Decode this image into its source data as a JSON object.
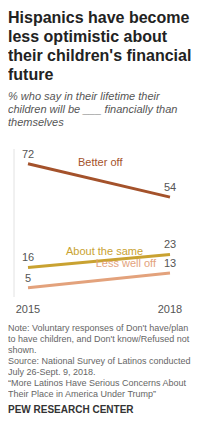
{
  "chart_data": {
    "type": "line",
    "title": "Hispanics have become less optimistic about their children's financial future",
    "subtitle": "% who say in their lifetime their children will be ___ financially than themselves",
    "categories": [
      "2015",
      "2018"
    ],
    "series": [
      {
        "name": "Better off",
        "color": "#a4522b",
        "values": [
          72,
          54
        ]
      },
      {
        "name": "About the same",
        "color": "#c9a231",
        "values": [
          16,
          23
        ]
      },
      {
        "name": "Less well off",
        "color": "#e3a27c",
        "values": [
          5,
          13
        ]
      }
    ],
    "ylim": [
      0,
      80
    ],
    "data_labels": true,
    "tick_labels": "x",
    "grid": false,
    "note": "Note: Voluntary responses of Don't have/plan to have children, and Don't know/Refused not shown.",
    "source": "Source: National Survey of Latinos conducted July 26-Sept. 9, 2018.",
    "report": "“More Latinos Have Serious Concerns About Their Place in America Under Trump”",
    "credit": "PEW RESEARCH CENTER"
  }
}
